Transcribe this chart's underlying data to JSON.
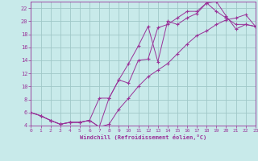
{
  "xlabel": "Windchill (Refroidissement éolien,°C)",
  "ylabel": "",
  "bg_color": "#c8eaea",
  "grid_color": "#a0c8c8",
  "line_color": "#993399",
  "marker": "+",
  "xlim": [
    0,
    23
  ],
  "ylim": [
    4,
    23
  ],
  "xticks": [
    0,
    1,
    2,
    3,
    4,
    5,
    6,
    7,
    8,
    9,
    10,
    11,
    12,
    13,
    14,
    15,
    16,
    17,
    18,
    19,
    20,
    21,
    22,
    23
  ],
  "yticks": [
    4,
    6,
    8,
    10,
    12,
    14,
    16,
    18,
    20,
    22
  ],
  "line1_x": [
    0,
    1,
    2,
    3,
    4,
    5,
    6,
    7,
    8,
    9,
    10,
    11,
    12,
    13,
    14,
    15,
    16,
    17,
    18,
    19,
    20,
    21,
    22,
    23
  ],
  "line1_y": [
    6.0,
    5.5,
    4.8,
    4.2,
    4.5,
    4.5,
    4.8,
    3.8,
    8.2,
    11.0,
    13.5,
    16.2,
    19.2,
    13.8,
    20.0,
    19.5,
    20.5,
    21.2,
    22.8,
    23.0,
    20.8,
    18.8,
    19.5,
    19.2
  ],
  "line2_x": [
    0,
    1,
    2,
    3,
    4,
    5,
    6,
    7,
    8,
    9,
    10,
    11,
    12,
    13,
    14,
    15,
    16,
    17,
    18,
    19,
    20,
    21,
    22,
    23
  ],
  "line2_y": [
    6.0,
    5.5,
    4.8,
    4.2,
    4.5,
    4.5,
    4.8,
    8.2,
    8.2,
    11.0,
    10.5,
    14.0,
    14.2,
    19.0,
    19.5,
    20.5,
    21.5,
    21.5,
    22.8,
    21.5,
    20.5,
    19.5,
    19.5,
    19.2
  ],
  "line3_x": [
    0,
    1,
    2,
    3,
    4,
    5,
    6,
    7,
    8,
    9,
    10,
    11,
    12,
    13,
    14,
    15,
    16,
    17,
    18,
    19,
    20,
    21,
    22,
    23
  ],
  "line3_y": [
    6.0,
    5.5,
    4.8,
    4.2,
    4.5,
    4.5,
    4.8,
    3.8,
    4.2,
    6.5,
    8.2,
    10.0,
    11.5,
    12.5,
    13.5,
    15.0,
    16.5,
    17.8,
    18.5,
    19.5,
    20.2,
    20.5,
    21.0,
    19.2
  ]
}
